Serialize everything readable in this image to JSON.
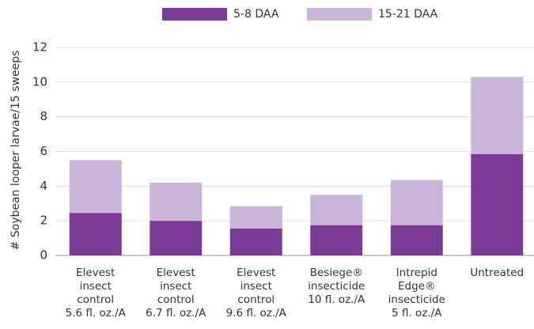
{
  "chart_data": {
    "type": "stacked_bar",
    "y_label": "# Soybean looper larvae/15 sweeps",
    "categories": [
      [
        "Elevest",
        "insect",
        "control",
        "5.6 fl. oz./A"
      ],
      [
        "Elevest",
        "insect",
        "control",
        "6.7 fl. oz./A"
      ],
      [
        "Elevest",
        "insect",
        "control",
        "9.6 fl. oz./A"
      ],
      [
        "Besiege®",
        "insecticide",
        "10 fl. oz./A"
      ],
      [
        "Intrepid",
        "Edge®",
        "insecticide",
        "5 fl. oz./A"
      ],
      [
        "Untreated"
      ]
    ],
    "series": [
      {
        "name": "5-8 DAA",
        "color": "#7b3a96",
        "values": [
          2.45,
          2.0,
          1.55,
          1.75,
          1.75,
          5.85
        ]
      },
      {
        "name": "15-21 DAA",
        "color": "#c9b5d8",
        "values": [
          3.05,
          2.2,
          1.3,
          1.75,
          2.6,
          4.45
        ]
      }
    ],
    "ylim": [
      0,
      12
    ],
    "yticks": [
      0,
      2,
      4,
      6,
      8,
      10,
      12
    ],
    "grid": true,
    "legend": "top"
  }
}
